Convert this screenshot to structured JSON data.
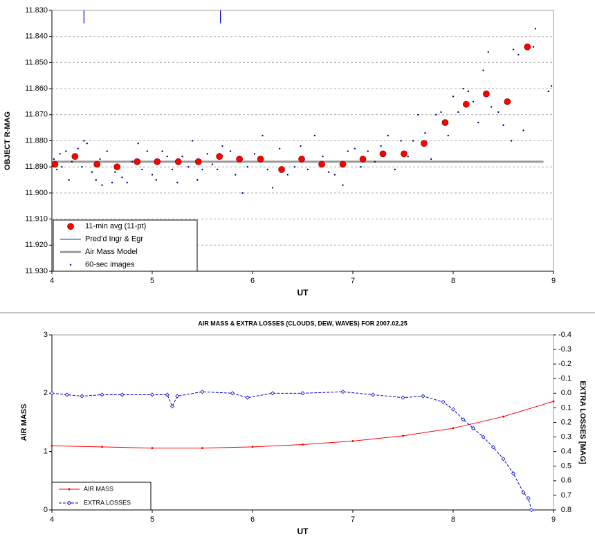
{
  "chart_data": [
    {
      "type": "scatter",
      "ylabel": "OBJECT R-MAG",
      "xlabel": "UT",
      "xlim": [
        4,
        9
      ],
      "xticks": [
        4,
        5,
        6,
        7,
        8,
        9
      ],
      "ylim": [
        11.93,
        11.83
      ],
      "yticks": [
        {
          "value": 11.83,
          "label": "11.830"
        },
        {
          "value": 11.84,
          "label": "11.840"
        },
        {
          "value": 11.85,
          "label": "11.850"
        },
        {
          "value": 11.86,
          "label": "11.860"
        },
        {
          "value": 11.87,
          "label": "11.870"
        },
        {
          "value": 11.88,
          "label": "11.880"
        },
        {
          "value": 11.89,
          "label": "11.890"
        },
        {
          "value": 11.9,
          "label": "11.900"
        },
        {
          "value": 11.91,
          "label": "11.910"
        },
        {
          "value": 11.92,
          "label": "11.920"
        },
        {
          "value": 11.93,
          "label": "11.930"
        }
      ],
      "grid": true,
      "legend": "lower left",
      "series": [
        {
          "name": "11-min avg (11-pt)",
          "color": "#ff0000",
          "style": "marker",
          "x": [
            4.03,
            4.23,
            4.45,
            4.65,
            4.85,
            5.05,
            5.26,
            5.46,
            5.67,
            5.87,
            6.08,
            6.29,
            6.49,
            6.69,
            6.9,
            7.1,
            7.3,
            7.51,
            7.71,
            7.92,
            8.13,
            8.33,
            8.54,
            8.74
          ],
          "values": [
            11.889,
            11.886,
            11.889,
            11.89,
            11.888,
            11.888,
            11.888,
            11.888,
            11.886,
            11.887,
            11.887,
            11.891,
            11.887,
            11.889,
            11.889,
            11.887,
            11.885,
            11.885,
            11.881,
            11.873,
            11.866,
            11.862,
            11.865,
            11.844
          ]
        },
        {
          "name": "Pred'd Ingr & Egr",
          "color": "#0000cc",
          "style": "vline",
          "x": [
            4.32,
            5.68
          ],
          "values": [
            11.835,
            11.835
          ]
        },
        {
          "name": "Air Mass Model",
          "color": "#999999",
          "style": "line",
          "x": [
            4,
            8.9
          ],
          "values": [
            11.888,
            11.888
          ]
        },
        {
          "name": "60-sec images",
          "color": "#000080",
          "style": "dot",
          "x": [
            4.02,
            4.05,
            4.08,
            4.1,
            4.14,
            4.17,
            4.2,
            4.26,
            4.3,
            4.32,
            4.35,
            4.4,
            4.44,
            4.48,
            4.5,
            4.55,
            4.6,
            4.63,
            4.7,
            4.75,
            4.8,
            4.86,
            4.9,
            4.95,
            5.0,
            5.04,
            5.1,
            5.15,
            5.2,
            5.25,
            5.3,
            5.36,
            5.4,
            5.45,
            5.5,
            5.55,
            5.6,
            5.65,
            5.7,
            5.78,
            5.83,
            5.9,
            5.95,
            6.02,
            6.1,
            6.15,
            6.2,
            6.27,
            6.35,
            6.42,
            6.48,
            6.55,
            6.62,
            6.7,
            6.76,
            6.82,
            6.9,
            6.95,
            7.02,
            7.08,
            7.15,
            7.22,
            7.28,
            7.35,
            7.42,
            7.48,
            7.55,
            7.6,
            7.65,
            7.72,
            7.78,
            7.83,
            7.88,
            7.95,
            8.0,
            8.05,
            8.1,
            8.15,
            8.2,
            8.25,
            8.3,
            8.35,
            8.38,
            8.45,
            8.5,
            8.58,
            8.6,
            8.65,
            8.7,
            8.8,
            8.82,
            8.95,
            8.98
          ],
          "values": [
            11.887,
            11.891,
            11.885,
            11.89,
            11.884,
            11.895,
            11.888,
            11.883,
            11.89,
            11.88,
            11.881,
            11.892,
            11.895,
            11.887,
            11.897,
            11.884,
            11.896,
            11.892,
            11.894,
            11.896,
            11.888,
            11.881,
            11.891,
            11.884,
            11.893,
            11.895,
            11.884,
            11.886,
            11.891,
            11.896,
            11.886,
            11.89,
            11.88,
            11.895,
            11.891,
            11.885,
            11.889,
            11.891,
            11.882,
            11.884,
            11.893,
            11.9,
            11.89,
            11.885,
            11.878,
            11.891,
            11.898,
            11.883,
            11.893,
            11.89,
            11.882,
            11.891,
            11.878,
            11.886,
            11.892,
            11.893,
            11.897,
            11.884,
            11.883,
            11.89,
            11.884,
            11.888,
            11.882,
            11.878,
            11.891,
            11.88,
            11.886,
            11.88,
            11.87,
            11.877,
            11.887,
            11.87,
            11.869,
            11.878,
            11.863,
            11.869,
            11.86,
            11.861,
            11.865,
            11.873,
            11.853,
            11.846,
            11.867,
            11.869,
            11.874,
            11.88,
            11.845,
            11.847,
            11.876,
            11.844,
            11.837,
            11.861,
            11.859
          ]
        }
      ]
    },
    {
      "type": "line",
      "title": "AIR MASS & EXTRA LOSSES (CLOUDS, DEW, WAVES) FOR 2007.02.25",
      "ylabel": "AIR MASS",
      "y2label": "EXTRA LOSSES [MAG]",
      "xlabel": "UT",
      "xlim": [
        4,
        9
      ],
      "xticks": [
        4,
        5,
        6,
        7,
        8,
        9
      ],
      "ylim": [
        0,
        3
      ],
      "yticks": [
        0,
        1,
        2,
        3
      ],
      "y2lim": [
        0.8,
        -0.4
      ],
      "y2ticks": [
        -0.4,
        -0.3,
        -0.2,
        -0.1,
        {
          "value": 0,
          "label": "0.0"
        },
        0.1,
        0.2,
        0.3,
        0.4,
        0.5,
        0.6,
        0.7,
        0.8
      ],
      "grid": false,
      "legend": "lower left",
      "series": [
        {
          "name": "AIR MASS",
          "color": "#ff0000",
          "style": "solid",
          "x": [
            4,
            4.5,
            5,
            5.5,
            6,
            6.5,
            7,
            7.5,
            8,
            8.5,
            9
          ],
          "values": [
            1.1,
            1.08,
            1.06,
            1.06,
            1.08,
            1.12,
            1.18,
            1.27,
            1.4,
            1.6,
            1.86
          ]
        },
        {
          "name": "EXTRA LOSSES",
          "color": "#0000cc",
          "style": "dashed",
          "axis": "y2",
          "x": [
            4,
            4.15,
            4.3,
            4.5,
            4.7,
            5,
            5.15,
            5.2,
            5.25,
            5.5,
            5.8,
            5.95,
            6.2,
            6.5,
            6.9,
            7.2,
            7.5,
            7.7,
            7.9,
            8.0,
            8.1,
            8.2,
            8.3,
            8.4,
            8.5,
            8.6,
            8.7,
            8.75,
            8.78
          ],
          "values": [
            0.0,
            0.01,
            0.02,
            0.01,
            0.01,
            0.01,
            0.01,
            0.09,
            0.02,
            -0.01,
            0.0,
            0.03,
            0.0,
            0.0,
            -0.01,
            0.01,
            0.03,
            0.02,
            0.06,
            0.11,
            0.18,
            0.24,
            0.3,
            0.37,
            0.45,
            0.55,
            0.68,
            0.72,
            0.8
          ]
        }
      ]
    }
  ]
}
